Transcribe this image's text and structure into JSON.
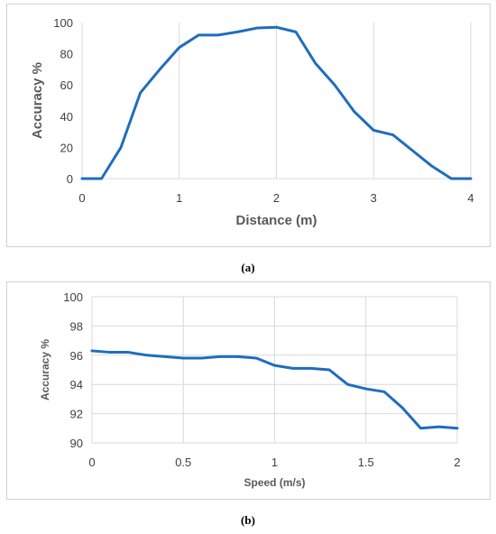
{
  "chart_data": [
    {
      "type": "line",
      "xlabel": "Distance (m)",
      "ylabel": "Accuracy %",
      "xlim": [
        0,
        4
      ],
      "ylim": [
        0,
        100
      ],
      "xticks": [
        0,
        1,
        2,
        3,
        4
      ],
      "yticks": [
        0,
        20,
        40,
        60,
        80,
        100
      ],
      "grid": "vertical",
      "color": "#1f6dbd",
      "x": [
        0,
        0.2,
        0.4,
        0.6,
        0.8,
        1.0,
        1.2,
        1.4,
        1.6,
        1.8,
        2.0,
        2.2,
        2.4,
        2.6,
        2.8,
        3.0,
        3.2,
        3.4,
        3.6,
        3.8,
        4.0
      ],
      "y": [
        0,
        0,
        20,
        55,
        70,
        84,
        92,
        92,
        94,
        96.5,
        97,
        94,
        74,
        60,
        43,
        31,
        28,
        18,
        8,
        0,
        0
      ],
      "caption": "(a)"
    },
    {
      "type": "line",
      "xlabel": "Speed (m/s)",
      "ylabel": "Accuracy %",
      "xlim": [
        0,
        2
      ],
      "ylim": [
        90,
        100
      ],
      "xticks": [
        "0",
        "0.5",
        "1",
        "1.5",
        "2"
      ],
      "yticks": [
        90,
        92,
        94,
        96,
        98,
        100
      ],
      "grid": "both",
      "color": "#1f6dbd",
      "x": [
        0,
        0.1,
        0.2,
        0.3,
        0.4,
        0.5,
        0.6,
        0.7,
        0.8,
        0.9,
        1.0,
        1.1,
        1.2,
        1.3,
        1.4,
        1.5,
        1.6,
        1.7,
        1.8,
        1.9,
        2.0
      ],
      "y": [
        96.3,
        96.2,
        96.2,
        96.0,
        95.9,
        95.8,
        95.8,
        95.9,
        95.9,
        95.8,
        95.3,
        95.1,
        95.1,
        95.0,
        94.0,
        93.7,
        93.5,
        92.4,
        91.0,
        91.1,
        91.0
      ],
      "caption": "(b)"
    }
  ]
}
